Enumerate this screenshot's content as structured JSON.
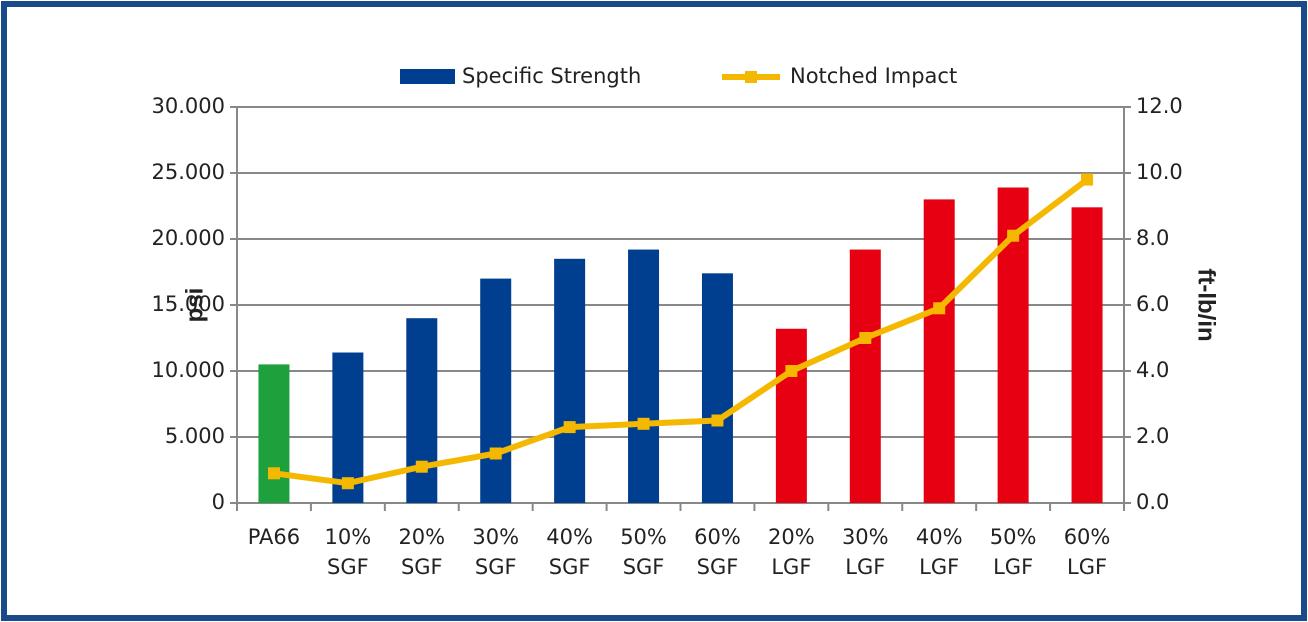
{
  "chart_data": {
    "type": "bar",
    "categories": [
      "PA66",
      "10% SGF",
      "20% SGF",
      "30% SGF",
      "40% SGF",
      "50% SGF",
      "60% SGF",
      "20% LGF",
      "30% LGF",
      "40% LGF",
      "50% LGF",
      "60% LGF"
    ],
    "series": [
      {
        "name": "Specific Strength",
        "type": "bar",
        "color": "#003f8f",
        "colors": [
          "#1ea03c",
          "#003f8f",
          "#003f8f",
          "#003f8f",
          "#003f8f",
          "#003f8f",
          "#003f8f",
          "#e60012",
          "#e60012",
          "#e60012",
          "#e60012",
          "#e60012"
        ],
        "values": [
          10500,
          11400,
          14000,
          17000,
          18500,
          19200,
          17400,
          13200,
          19200,
          23000,
          23900,
          22400
        ]
      },
      {
        "name": "Notched Impact",
        "type": "line",
        "axis": "y2",
        "color": "#f5b800",
        "values": [
          0.9,
          0.6,
          1.1,
          1.5,
          2.3,
          2.4,
          2.5,
          4.0,
          5.0,
          5.9,
          8.1,
          9.8
        ]
      }
    ],
    "ylabel": "psi",
    "y2label": "ft-lb/in",
    "ylim": [
      0,
      30000
    ],
    "yticks": [
      {
        "value": 0,
        "label": "0"
      },
      {
        "value": 5000,
        "label": "5.000"
      },
      {
        "value": 10000,
        "label": "10.000"
      },
      {
        "value": 15000,
        "label": "15.000"
      },
      {
        "value": 20000,
        "label": "20.000"
      },
      {
        "value": 25000,
        "label": "25.000"
      },
      {
        "value": 30000,
        "label": "30.000"
      }
    ],
    "y2lim": [
      0,
      12
    ],
    "y2ticks": [
      {
        "value": 0,
        "label": "0.0"
      },
      {
        "value": 2,
        "label": "2.0"
      },
      {
        "value": 4,
        "label": "4.0"
      },
      {
        "value": 6,
        "label": "6.0"
      },
      {
        "value": 8,
        "label": "8.0"
      },
      {
        "value": 10,
        "label": "10.0"
      },
      {
        "value": 12,
        "label": "12.0"
      }
    ],
    "grid": true,
    "legend": "top"
  }
}
